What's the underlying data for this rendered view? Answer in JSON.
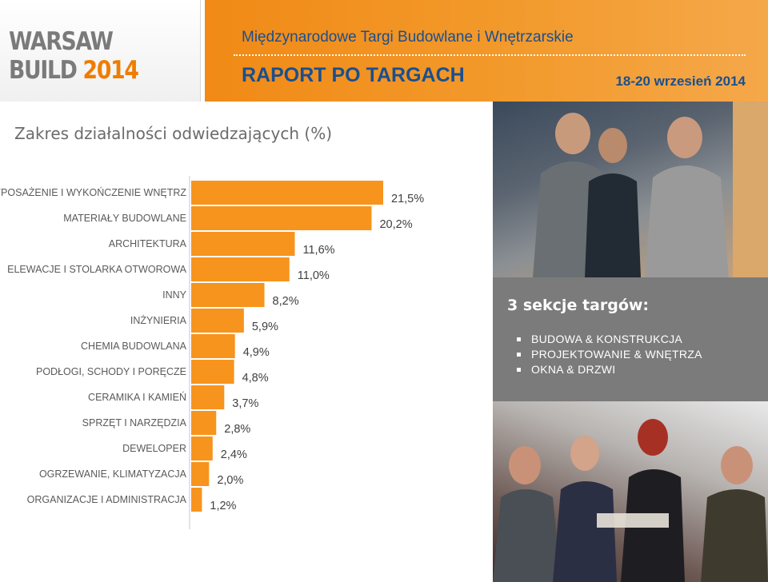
{
  "header": {
    "logo_main": "WARSAW BUILD",
    "logo_year": "2014",
    "subtitle": "Międzynarodowe Targi Budowlane i Wnętrzarskie",
    "title": "RAPORT PO TARGACH",
    "date": "18-20 wrzesień 2014"
  },
  "section_title": "Zakres działalności odwiedzających (%)",
  "sections": {
    "title": "3 sekcje targów:",
    "items": [
      "BUDOWA & KONSTRUKCJA",
      "PROJEKTOWANIE & WNĘTRZA",
      "OKNA & DRZWI"
    ]
  },
  "colors": {
    "accent": "#f7941d",
    "header_text": "#1a4f8f",
    "box_bg": "#7b7b7b"
  },
  "chart_data": {
    "type": "bar",
    "orientation": "horizontal",
    "title": "Zakres działalności odwiedzających (%)",
    "categories": [
      "WYPOSAŻENIE I WYKOŃCZENIE WNĘTRZ",
      "MATERIAŁY BUDOWLANE",
      "ARCHITEKTURA",
      "ELEWACJE I STOLARKA OTWOROWA",
      "INNY",
      "INŻYNIERIA",
      "CHEMIA BUDOWLANA",
      "PODŁOGI, SCHODY I PORĘCZE",
      "CERAMIKA I KAMIEŃ",
      "SPRZĘT I NARZĘDZIA",
      "DEWELOPER",
      "OGRZEWANIE, KLIMATYZACJA",
      "ORGANIZACJE I ADMINISTRACJA"
    ],
    "values": [
      21.5,
      20.2,
      11.6,
      11.0,
      8.2,
      5.9,
      4.9,
      4.8,
      3.7,
      2.8,
      2.4,
      2.0,
      1.2
    ],
    "value_labels": [
      "21,5%",
      "20,2%",
      "11,6%",
      "11,0%",
      "8,2%",
      "5,9%",
      "4,9%",
      "4,8%",
      "3,7%",
      "2,8%",
      "2,4%",
      "2,0%",
      "1,2%"
    ],
    "color": "#f7941d",
    "grid": false,
    "legend": "none"
  }
}
